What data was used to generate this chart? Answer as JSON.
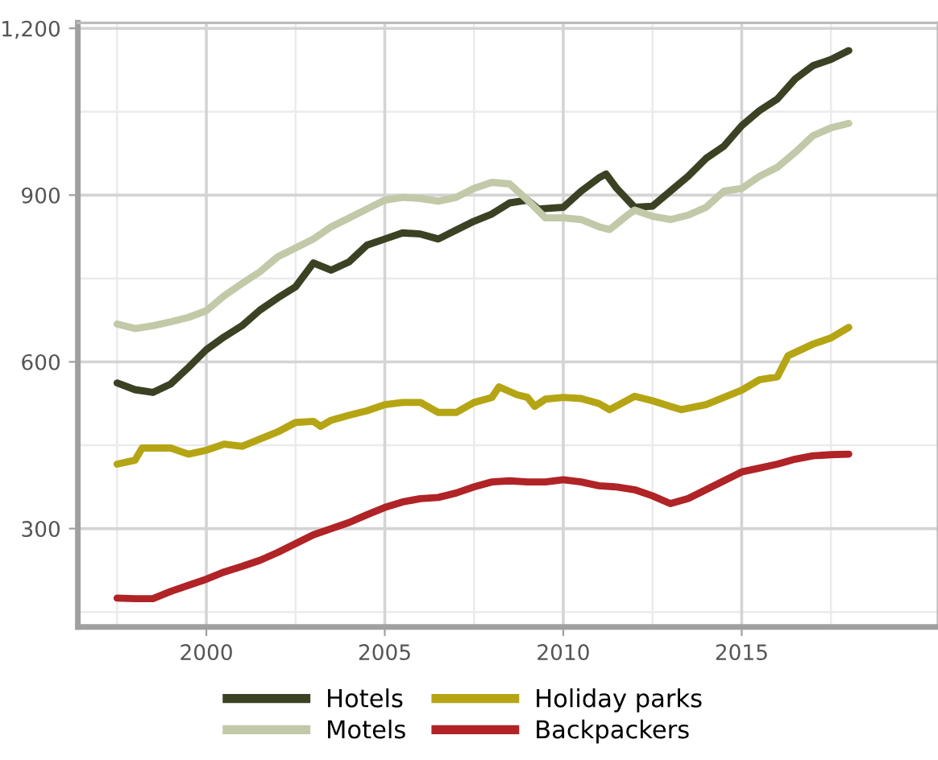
{
  "chart_data": {
    "type": "line",
    "xlim": [
      1996.4,
      2020.5
    ],
    "ylim": [
      123,
      1210
    ],
    "xticks": [
      2000,
      2005,
      2010,
      2015
    ],
    "yticks": [
      300,
      600,
      900,
      {
        "value": 1200,
        "label": "1,200"
      }
    ],
    "grid": true,
    "legend": "bottom",
    "marker": "none",
    "line_style": "solid",
    "series": [
      {
        "name": "Hotels",
        "color": "#3b4223",
        "x": [
          1997.5,
          1998,
          1998.5,
          1999,
          1999.5,
          2000,
          2000.5,
          2001,
          2001.5,
          2002,
          2002.5,
          2003,
          2003.5,
          2004,
          2004.5,
          2005,
          2005.5,
          2006,
          2006.5,
          2007,
          2007.5,
          2008,
          2008.5,
          2009,
          2009.3,
          2010,
          2010.5,
          2011,
          2011.2,
          2011.5,
          2012,
          2012.5,
          2013,
          2013.5,
          2014,
          2014.5,
          2015,
          2015.5,
          2016,
          2016.5,
          2017,
          2017.5,
          2018
        ],
        "values": [
          562,
          550,
          545,
          560,
          590,
          622,
          645,
          665,
          693,
          715,
          735,
          778,
          765,
          780,
          810,
          821,
          832,
          830,
          821,
          837,
          853,
          866,
          886,
          891,
          875,
          878,
          907,
          931,
          938,
          912,
          878,
          880,
          907,
          934,
          966,
          988,
          1025,
          1052,
          1073,
          1109,
          1133,
          1144,
          1160
        ]
      },
      {
        "name": "Motels",
        "color": "#c1c9a8",
        "x": [
          1997.5,
          1998,
          1998.5,
          1999,
          1999.5,
          2000,
          2000.5,
          2001,
          2001.5,
          2002,
          2002.5,
          2003,
          2003.5,
          2004,
          2004.5,
          2005,
          2005.5,
          2006,
          2006.5,
          2007,
          2007.5,
          2008,
          2008.5,
          2009,
          2009.5,
          2010,
          2010.5,
          2011,
          2011.3,
          2011.8,
          2012,
          2012.5,
          2013,
          2013.5,
          2014,
          2014.5,
          2015,
          2015.5,
          2016,
          2016.5,
          2017,
          2017.5,
          2018
        ],
        "values": [
          668,
          660,
          665,
          672,
          680,
          692,
          719,
          741,
          762,
          789,
          805,
          821,
          843,
          859,
          875,
          891,
          896,
          894,
          889,
          896,
          912,
          923,
          920,
          891,
          859,
          859,
          856,
          843,
          838,
          864,
          873,
          862,
          856,
          864,
          878,
          907,
          912,
          934,
          950,
          977,
          1007,
          1021,
          1029
        ]
      },
      {
        "name": "Holiday parks",
        "color": "#b5a514",
        "x": [
          1997.5,
          1998,
          1998.2,
          1999,
          1999.5,
          2000,
          2000.5,
          2001,
          2001.5,
          2002,
          2002.5,
          2003,
          2003.2,
          2003.5,
          2004,
          2004.5,
          2005,
          2005.5,
          2006,
          2006.5,
          2007,
          2007.5,
          2008,
          2008.2,
          2008.7,
          2009,
          2009.2,
          2009.5,
          2010,
          2010.5,
          2011,
          2011.3,
          2012,
          2012.5,
          2013,
          2013.3,
          2014,
          2014.5,
          2015,
          2015.5,
          2016,
          2016.3,
          2017,
          2017.5,
          2018
        ],
        "values": [
          416,
          423,
          445,
          445,
          434,
          441,
          452,
          448,
          461,
          474,
          491,
          493,
          484,
          495,
          504,
          512,
          523,
          527,
          527,
          509,
          509,
          527,
          536,
          555,
          541,
          536,
          520,
          533,
          536,
          534,
          525,
          514,
          538,
          530,
          520,
          514,
          523,
          536,
          549,
          568,
          573,
          611,
          632,
          643,
          662
        ]
      },
      {
        "name": "Backpackers",
        "color": "#b02326",
        "x": [
          1997.5,
          1998,
          1998.5,
          1999,
          1999.5,
          2000,
          2000.5,
          2001,
          2001.5,
          2002,
          2002.5,
          2003,
          2003.5,
          2004,
          2004.5,
          2005,
          2005.5,
          2006,
          2006.5,
          2007,
          2007.5,
          2008,
          2008.5,
          2009,
          2009.5,
          2010,
          2010.5,
          2011,
          2011.5,
          2012,
          2012.5,
          2013,
          2013.5,
          2014,
          2014.5,
          2015,
          2015.5,
          2016,
          2016.5,
          2017,
          2017.5,
          2018
        ],
        "values": [
          175,
          174,
          174,
          187,
          198,
          209,
          222,
          232,
          243,
          257,
          273,
          289,
          300,
          311,
          325,
          338,
          348,
          354,
          356,
          364,
          375,
          384,
          386,
          384,
          384,
          388,
          384,
          377,
          375,
          370,
          359,
          345,
          354,
          370,
          386,
          402,
          409,
          416,
          425,
          431,
          433,
          434
        ]
      }
    ]
  }
}
